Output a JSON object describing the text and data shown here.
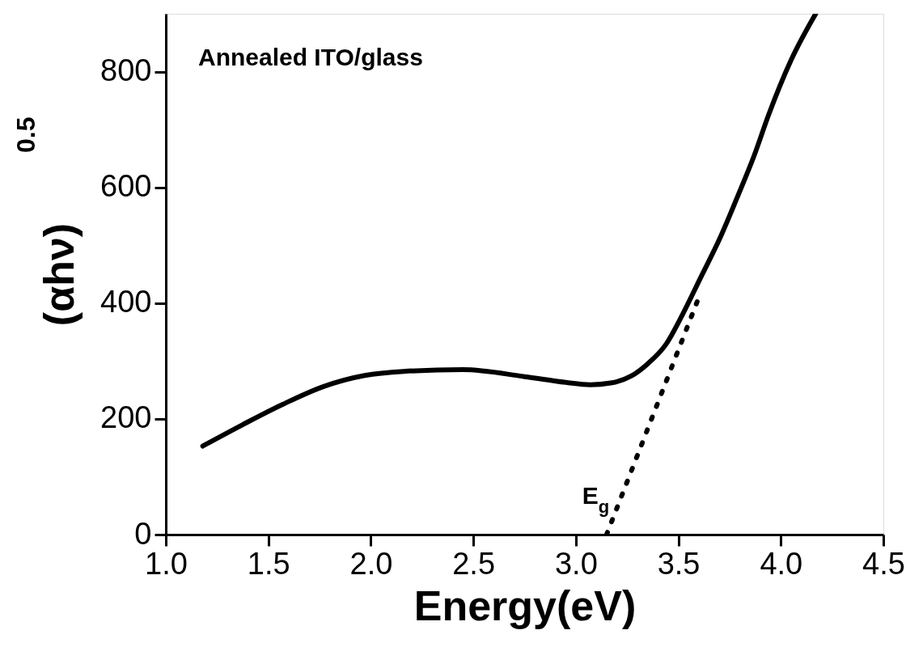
{
  "chart_data": {
    "type": "line",
    "xlabel": "Energy(eV)",
    "ylabel": "(αhν)$^{0.5}$",
    "annotations": [
      "Annealed ITO/glass",
      {
        "text": "E$_{g}$",
        "x": 3.15,
        "y": 0
      }
    ],
    "series": [
      {
        "color": "#000000",
        "line_style": "solid",
        "x": [
          1.18,
          1.375,
          1.57,
          1.77,
          1.97,
          2.16,
          2.45,
          2.75,
          2.95,
          3.07,
          3.17,
          3.27,
          3.35,
          3.44,
          3.52,
          3.61,
          3.7,
          3.79,
          3.87,
          3.94,
          4.05,
          4.17
        ],
        "values": [
          153,
          190,
          225,
          256,
          275,
          282,
          285,
          273,
          263,
          259,
          262,
          274,
          295,
          329,
          380,
          445,
          510,
          585,
          655,
          725,
          820,
          900
        ]
      },
      {
        "color": "#000000",
        "line_style": "dotted",
        "x": [
          3.15,
          3.6
        ],
        "values": [
          0,
          410
        ]
      }
    ],
    "xlim": [
      1.0,
      4.5
    ],
    "ylim": [
      0,
      900
    ],
    "xticks": [
      {
        "value": 1.0,
        "label": "1.0"
      },
      {
        "value": 1.5,
        "label": "1.5"
      },
      {
        "value": 2.0,
        "label": "2.0"
      },
      {
        "value": 2.5,
        "label": "2.5"
      },
      {
        "value": 3.0,
        "label": "3.0"
      },
      {
        "value": 3.5,
        "label": "3.5"
      },
      {
        "value": 4.0,
        "label": "4.0"
      },
      {
        "value": 4.5,
        "label": "4.5"
      }
    ],
    "yticks": [
      0,
      200,
      400,
      600,
      800
    ],
    "grid": false,
    "marker": "none"
  }
}
